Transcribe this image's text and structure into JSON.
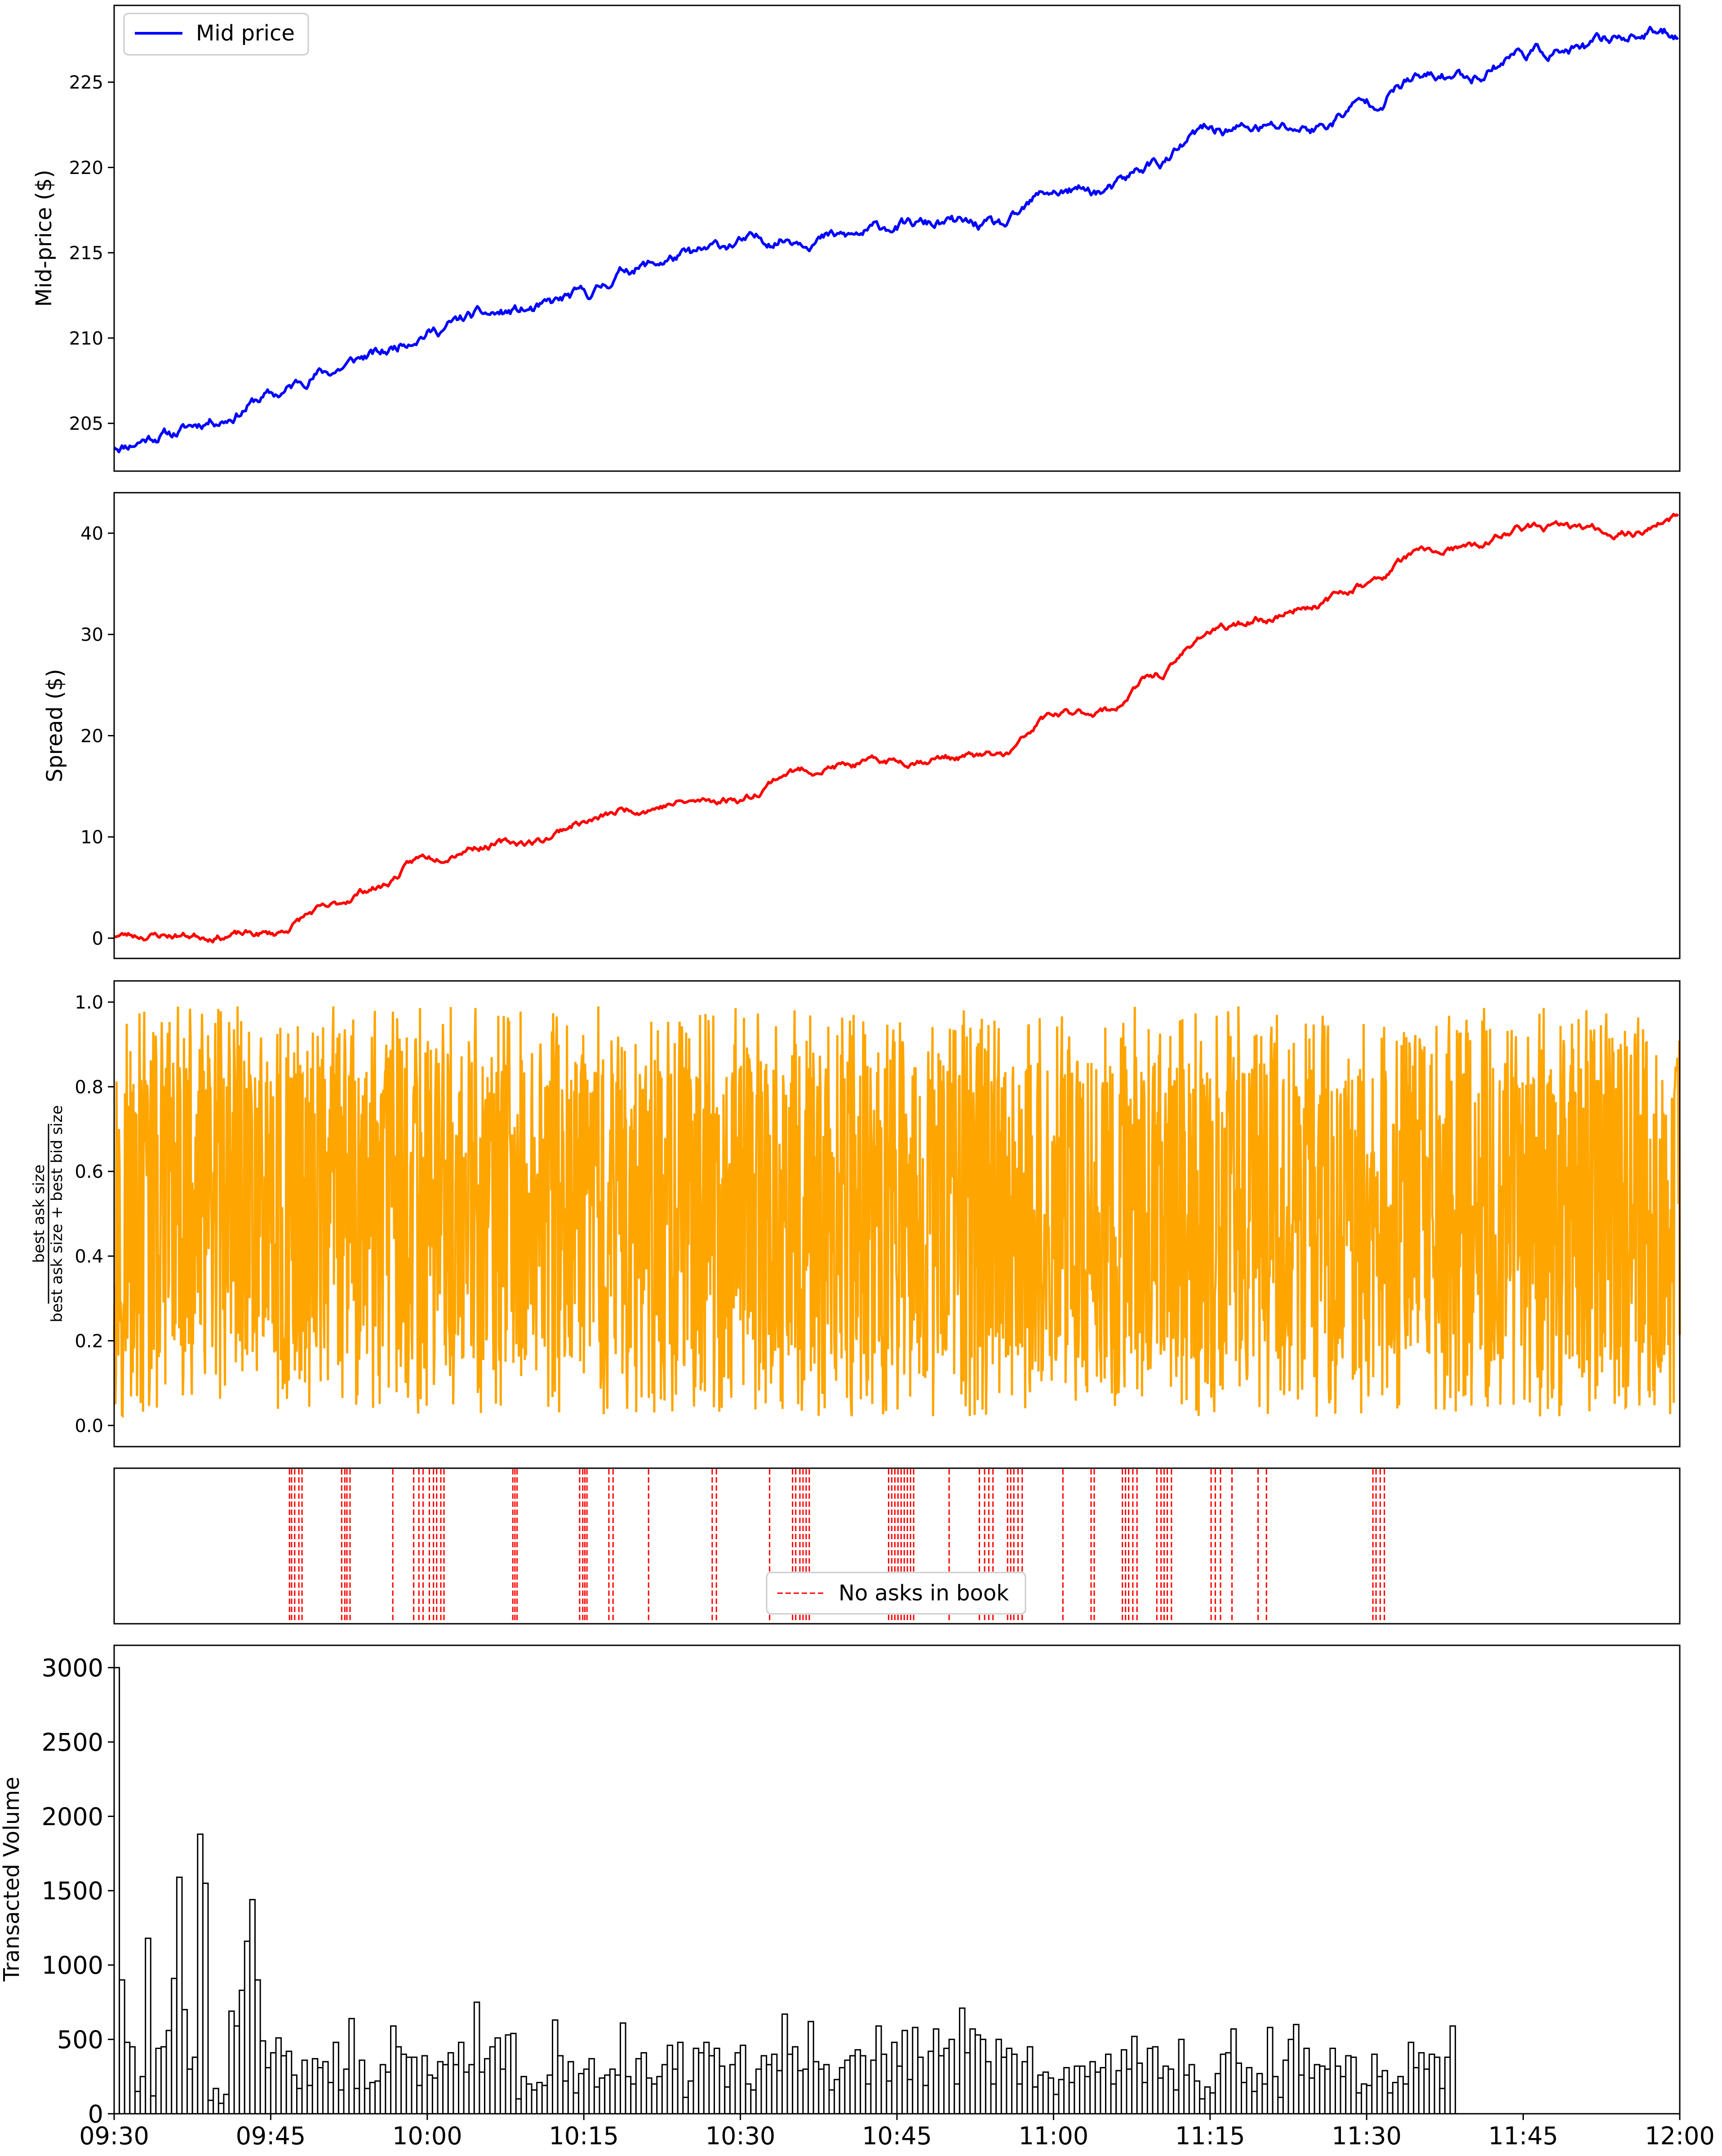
{
  "colors": {
    "mid": "#0000ff",
    "spread": "#ff0000",
    "imbalance": "#ffa500",
    "noasks": "#ff0000",
    "bars": "#000000"
  },
  "chart_data": [
    {
      "type": "line",
      "ylabel": "Mid-price ($)",
      "ylim": [
        202.2,
        229.5
      ],
      "yticks": [
        "205",
        "210",
        "215",
        "220",
        "225"
      ],
      "legend": {
        "entries": [
          "Mid price"
        ],
        "placement": "top-left"
      },
      "series": [
        {
          "name": "Mid price",
          "x": [
            "09:30",
            "09:35",
            "09:40",
            "09:45",
            "09:50",
            "09:55",
            "10:00",
            "10:05",
            "10:10",
            "10:15",
            "10:20",
            "10:25",
            "10:30",
            "10:35",
            "10:40",
            "10:45",
            "10:50",
            "10:55",
            "11:00",
            "11:05",
            "11:10",
            "11:15",
            "11:20",
            "11:25",
            "11:30",
            "11:35",
            "11:40",
            "11:45",
            "11:50",
            "11:55",
            "12:00"
          ],
          "y": [
            203.7,
            204.4,
            205.3,
            206.6,
            208.0,
            209.0,
            210.4,
            211.3,
            211.6,
            212.5,
            214.2,
            214.8,
            215.6,
            215.9,
            215.9,
            216.6,
            216.7,
            216.5,
            218.6,
            218.6,
            220.3,
            222.2,
            222.3,
            222.3,
            223.8,
            225.2,
            225.4,
            226.8,
            226.8,
            227.8,
            227.9
          ]
        }
      ]
    },
    {
      "type": "line",
      "ylabel": "Spread ($)",
      "ylim": [
        -2,
        44
      ],
      "yticks": [
        "0",
        "10",
        "20",
        "30",
        "40"
      ],
      "series": [
        {
          "x": [
            "09:30",
            "09:35",
            "09:40",
            "09:45",
            "09:50",
            "09:55",
            "10:00",
            "10:05",
            "10:10",
            "10:15",
            "10:20",
            "10:25",
            "10:30",
            "10:35",
            "10:40",
            "10:45",
            "10:50",
            "10:55",
            "11:00",
            "11:05",
            "11:10",
            "11:15",
            "11:20",
            "11:25",
            "11:30",
            "11:35",
            "11:40",
            "11:45",
            "11:50",
            "11:55",
            "12:00"
          ],
          "y": [
            0.3,
            0.3,
            0.3,
            0.4,
            2.8,
            5.0,
            8.0,
            9.2,
            9.5,
            11.5,
            12.8,
            13.4,
            13.8,
            16.5,
            17.0,
            17.5,
            17.9,
            18.0,
            22.0,
            22.5,
            26.0,
            30.3,
            31.5,
            33.0,
            35.0,
            38.0,
            38.5,
            40.5,
            40.5,
            40.0,
            41.5
          ]
        }
      ]
    },
    {
      "type": "line",
      "ylabel": "best ask size / (best ask size + best bid size)",
      "ylabel_num": "best ask size",
      "ylabel_den": "best ask size + best bid size",
      "ylim": [
        -0.05,
        1.05
      ],
      "yticks": [
        "0.0",
        "0.2",
        "0.4",
        "0.6",
        "0.8",
        "1.0"
      ],
      "series": [
        {
          "description": "dense oscillation",
          "min": 0.0,
          "max": 1.0,
          "mean": 0.5
        }
      ]
    },
    {
      "type": "events",
      "legend": {
        "entries": [
          "No asks in book"
        ],
        "placement": "bottom-center"
      },
      "event_minutes": [
        16.8,
        17.0,
        17.3,
        17.7,
        18.0,
        21.8,
        22.1,
        22.3,
        22.6,
        26.7,
        28.7,
        29.2,
        29.6,
        30.2,
        30.6,
        30.9,
        31.3,
        31.6,
        38.2,
        38.4,
        38.6,
        44.6,
        44.9,
        45.1,
        45.3,
        47.4,
        47.8,
        51.2,
        57.3,
        57.7,
        62.8,
        65.0,
        65.3,
        65.7,
        66.0,
        66.3,
        66.6,
        74.2,
        74.5,
        74.8,
        75.1,
        75.4,
        75.7,
        76.0,
        76.3,
        76.6,
        80.0,
        82.9,
        83.4,
        83.8,
        84.2,
        85.6,
        85.9,
        86.2,
        86.6,
        87.0,
        90.9,
        93.6,
        93.9,
        96.6,
        96.9,
        97.2,
        97.6,
        98.0,
        99.9,
        100.3,
        100.6,
        100.9,
        101.3,
        105.1,
        105.5,
        106.0,
        107.1,
        109.6,
        110.4,
        120.6,
        120.9,
        121.3,
        121.7
      ]
    },
    {
      "type": "bar",
      "ylabel": "Transacted Volume",
      "ylim": [
        0,
        3150
      ],
      "yticks": [
        "0",
        "500",
        "1000",
        "1500",
        "2000",
        "2500",
        "3000"
      ],
      "xticks": [
        "09:30",
        "09:45",
        "10:00",
        "10:15",
        "10:30",
        "10:45",
        "11:00",
        "11:15",
        "11:30",
        "11:45",
        "12:00"
      ],
      "bin_minutes": 0.5,
      "values": [
        3000,
        900,
        480,
        450,
        150,
        250,
        1180,
        120,
        440,
        450,
        560,
        910,
        1590,
        700,
        300,
        380,
        1880,
        1550,
        90,
        170,
        70,
        130,
        690,
        590,
        830,
        1160,
        1440,
        900,
        490,
        310,
        410,
        510,
        390,
        420,
        260,
        170,
        360,
        190,
        370,
        310,
        350,
        210,
        480,
        160,
        300,
        640,
        170,
        360,
        170,
        210,
        220,
        330,
        280,
        590,
        450,
        400,
        380,
        380,
        190,
        390,
        260,
        240,
        350,
        330,
        410,
        330,
        480,
        280,
        330,
        750,
        280,
        370,
        450,
        510,
        300,
        530,
        540,
        100,
        250,
        200,
        160,
        210,
        190,
        260,
        630,
        390,
        220,
        350,
        140,
        270,
        300,
        370,
        180,
        240,
        260,
        300,
        260,
        610,
        250,
        200,
        370,
        410,
        240,
        200,
        250,
        330,
        460,
        300,
        480,
        110,
        220,
        440,
        410,
        480,
        390,
        440,
        320,
        180,
        330,
        410,
        460,
        200,
        160,
        300,
        390,
        330,
        400,
        290,
        670,
        400,
        450,
        290,
        300,
        620,
        350,
        300,
        330,
        160,
        230,
        310,
        360,
        390,
        430,
        390,
        200,
        360,
        590,
        400,
        220,
        480,
        320,
        560,
        230,
        580,
        380,
        190,
        420,
        570,
        390,
        440,
        500,
        200,
        710,
        410,
        570,
        530,
        500,
        350,
        200,
        500,
        380,
        440,
        400,
        200,
        350,
        450,
        180,
        260,
        280,
        240,
        130,
        230,
        310,
        210,
        320,
        320,
        250,
        350,
        280,
        310,
        400,
        200,
        290,
        430,
        300,
        520,
        340,
        210,
        440,
        450,
        240,
        320,
        300,
        160,
        500,
        260,
        330,
        220,
        100,
        180,
        140,
        270,
        400,
        410,
        570,
        340,
        210,
        310,
        150,
        270,
        200,
        580,
        250,
        110,
        360,
        500,
        600,
        260,
        440,
        240,
        330,
        320,
        300,
        440,
        320,
        250,
        390,
        380,
        140,
        200,
        190,
        400,
        250,
        290,
        140,
        210,
        250,
        200,
        480,
        310,
        410,
        300,
        400,
        380,
        170,
        380,
        590
      ]
    }
  ]
}
